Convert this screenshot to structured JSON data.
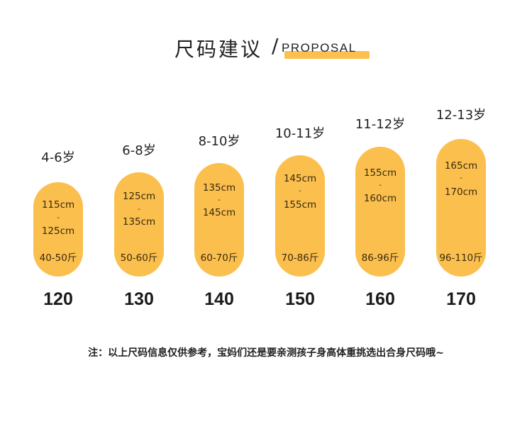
{
  "header": {
    "title_cn": "尺码建议",
    "slash": "/",
    "title_en": "PROPOSAL"
  },
  "columns": [
    {
      "age": "4-6岁",
      "height_from": "115cm",
      "dash": "-",
      "height_to": "125cm",
      "weight": "40-50斤",
      "size": "120"
    },
    {
      "age": "6-8岁",
      "height_from": "125cm",
      "dash": "-",
      "height_to": "135cm",
      "weight": "50-60斤",
      "size": "130"
    },
    {
      "age": "8-10岁",
      "height_from": "135cm",
      "dash": "-",
      "height_to": "145cm",
      "weight": "60-70斤",
      "size": "140"
    },
    {
      "age": "10-11岁",
      "height_from": "145cm",
      "dash": "-",
      "height_to": "155cm",
      "weight": "70-86斤",
      "size": "150"
    },
    {
      "age": "11-12岁",
      "height_from": "155cm",
      "dash": "-",
      "height_to": "160cm",
      "weight": "86-96斤",
      "size": "160"
    },
    {
      "age": "12-13岁",
      "height_from": "165cm",
      "dash": "-",
      "height_to": "170cm",
      "weight": "96-110斤",
      "size": "170"
    }
  ],
  "note": "注：以上尺码信息仅供参考，宝妈们还是要亲测孩子身高体重挑选出合身尺码哦~",
  "colors": {
    "pill": "#fbbf4d",
    "accent_bar": "#fbc04f",
    "text": "#222222"
  }
}
